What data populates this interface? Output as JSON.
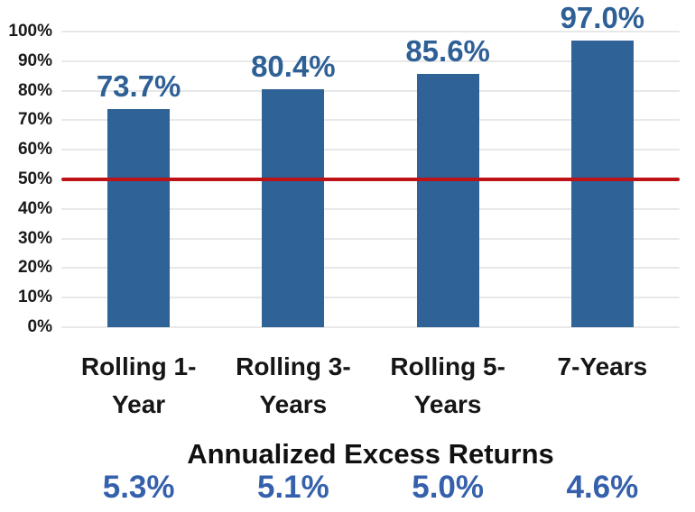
{
  "chart_data": {
    "type": "bar",
    "categories": [
      "Rolling 1-\nYear",
      "Rolling 3-\nYears",
      "Rolling 5-\nYears",
      "7-Years"
    ],
    "values": [
      73.7,
      80.4,
      85.6,
      97.0
    ],
    "value_labels": [
      "73.7%",
      "80.4%",
      "85.6%",
      "97.0%"
    ],
    "y_ticks": [
      0,
      10,
      20,
      30,
      40,
      50,
      60,
      70,
      80,
      90,
      100
    ],
    "y_tick_labels": [
      "0%",
      "10%",
      "20%",
      "30%",
      "40%",
      "50%",
      "60%",
      "70%",
      "80%",
      "90%",
      "100%"
    ],
    "ylim": [
      0,
      100
    ],
    "grid": true,
    "legend": "none",
    "bar_color": "#2f6296",
    "value_label_color": "#2e6096",
    "reference_line": {
      "value": 50,
      "color": "#be1316"
    },
    "footer": {
      "title": "Annualized Excess Returns",
      "values": [
        "5.3%",
        "5.1%",
        "5.0%",
        "4.6%"
      ],
      "value_color": "#3560ac"
    }
  }
}
